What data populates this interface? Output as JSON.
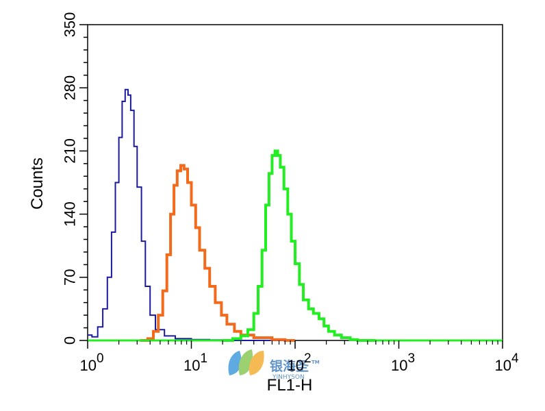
{
  "chart_data": {
    "type": "line",
    "title": "",
    "xlabel": "FL1-H",
    "ylabel": "Counts",
    "x_scale": "log",
    "xlim": [
      1,
      10000
    ],
    "ylim": [
      0,
      350
    ],
    "y_ticks": [
      0,
      70,
      140,
      210,
      280,
      350
    ],
    "x_ticks": [
      {
        "value": 1,
        "base": "10",
        "exp": "0"
      },
      {
        "value": 10,
        "base": "10",
        "exp": "1"
      },
      {
        "value": 100,
        "base": "10",
        "exp": "2"
      },
      {
        "value": 1000,
        "base": "10",
        "exp": "3"
      },
      {
        "value": 10000,
        "base": "10",
        "exp": "4"
      }
    ],
    "grid": false,
    "legend": "none",
    "series": [
      {
        "color": "#1a1a9e",
        "stroke": 2,
        "points": [
          [
            1.0,
            6
          ],
          [
            1.1,
            4
          ],
          [
            1.25,
            15
          ],
          [
            1.4,
            35
          ],
          [
            1.55,
            70
          ],
          [
            1.7,
            120
          ],
          [
            1.85,
            175
          ],
          [
            2.0,
            225
          ],
          [
            2.15,
            265
          ],
          [
            2.3,
            278
          ],
          [
            2.45,
            272
          ],
          [
            2.6,
            255
          ],
          [
            2.8,
            215
          ],
          [
            3.0,
            170
          ],
          [
            3.3,
            110
          ],
          [
            3.6,
            60
          ],
          [
            4.0,
            28
          ],
          [
            4.5,
            12
          ],
          [
            5.5,
            5
          ],
          [
            7,
            2
          ],
          [
            10,
            1
          ],
          [
            15,
            0.5
          ],
          [
            20,
            0
          ],
          [
            100,
            0
          ]
        ]
      },
      {
        "color": "#f26a1b",
        "stroke": 4,
        "points": [
          [
            3.2,
            0
          ],
          [
            3.8,
            2
          ],
          [
            4.3,
            10
          ],
          [
            4.8,
            28
          ],
          [
            5.3,
            55
          ],
          [
            5.8,
            95
          ],
          [
            6.3,
            140
          ],
          [
            6.8,
            172
          ],
          [
            7.3,
            188
          ],
          [
            7.9,
            194
          ],
          [
            8.5,
            190
          ],
          [
            9.2,
            175
          ],
          [
            10,
            150
          ],
          [
            11,
            125
          ],
          [
            12,
            100
          ],
          [
            13.5,
            80
          ],
          [
            15,
            60
          ],
          [
            17,
            42
          ],
          [
            19.5,
            28
          ],
          [
            22,
            18
          ],
          [
            26,
            10
          ],
          [
            30,
            6
          ],
          [
            40,
            3
          ],
          [
            60,
            1
          ],
          [
            80,
            0
          ],
          [
            100,
            0
          ]
        ]
      },
      {
        "color": "#22ee22",
        "stroke": 4,
        "points": [
          [
            20,
            0
          ],
          [
            25,
            2
          ],
          [
            30,
            5
          ],
          [
            35,
            12
          ],
          [
            40,
            30
          ],
          [
            44,
            60
          ],
          [
            48,
            100
          ],
          [
            52,
            150
          ],
          [
            56,
            185
          ],
          [
            60,
            205
          ],
          [
            64,
            210
          ],
          [
            68,
            205
          ],
          [
            72,
            192
          ],
          [
            78,
            168
          ],
          [
            85,
            140
          ],
          [
            92,
            110
          ],
          [
            100,
            85
          ],
          [
            110,
            62
          ],
          [
            120,
            45
          ],
          [
            135,
            35
          ],
          [
            150,
            30
          ],
          [
            170,
            24
          ],
          [
            190,
            16
          ],
          [
            210,
            10
          ],
          [
            240,
            6
          ],
          [
            280,
            3
          ],
          [
            340,
            1
          ],
          [
            400,
            0
          ],
          [
            600,
            0
          ]
        ]
      },
      {
        "color": "#22ee22",
        "stroke": 3,
        "points": [
          [
            1,
            0
          ],
          [
            20,
            0
          ]
        ]
      },
      {
        "color": "#22ee22",
        "stroke": 3,
        "points": [
          [
            600,
            0
          ],
          [
            10000,
            0
          ]
        ]
      }
    ]
  }
}
